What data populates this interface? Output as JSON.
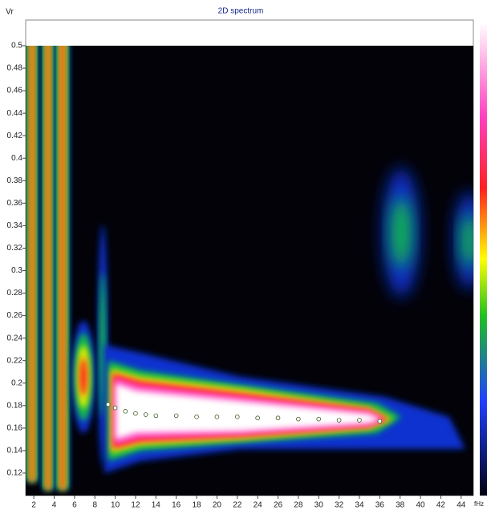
{
  "chart_data": {
    "type": "scatter",
    "title": "2D spectrum",
    "y_label": "Vr",
    "x_label": "fHz",
    "xlim": [
      1.2,
      45.2
    ],
    "ylim": [
      0.1,
      0.5
    ],
    "xticks": [
      2,
      4,
      6,
      8,
      10,
      12,
      14,
      16,
      18,
      20,
      22,
      24,
      26,
      28,
      30,
      32,
      34,
      36,
      38,
      40,
      42,
      44
    ],
    "yticks": [
      0.12,
      0.14,
      0.16,
      0.18,
      0.2,
      0.22,
      0.24,
      0.26,
      0.28,
      0.3,
      0.32,
      0.34,
      0.36,
      0.38,
      0.4,
      0.42,
      0.44,
      0.46,
      0.48,
      0.5
    ],
    "x": [
      9.3,
      10,
      11,
      12,
      13,
      14,
      16,
      18,
      20,
      22,
      24,
      26,
      28,
      30,
      32,
      34,
      36
    ],
    "values": [
      0.181,
      0.178,
      0.175,
      0.173,
      0.172,
      0.171,
      0.171,
      0.17,
      0.17,
      0.17,
      0.169,
      0.169,
      0.168,
      0.168,
      0.167,
      0.167,
      0.166
    ],
    "color": "#ffffff",
    "grid": false
  }
}
